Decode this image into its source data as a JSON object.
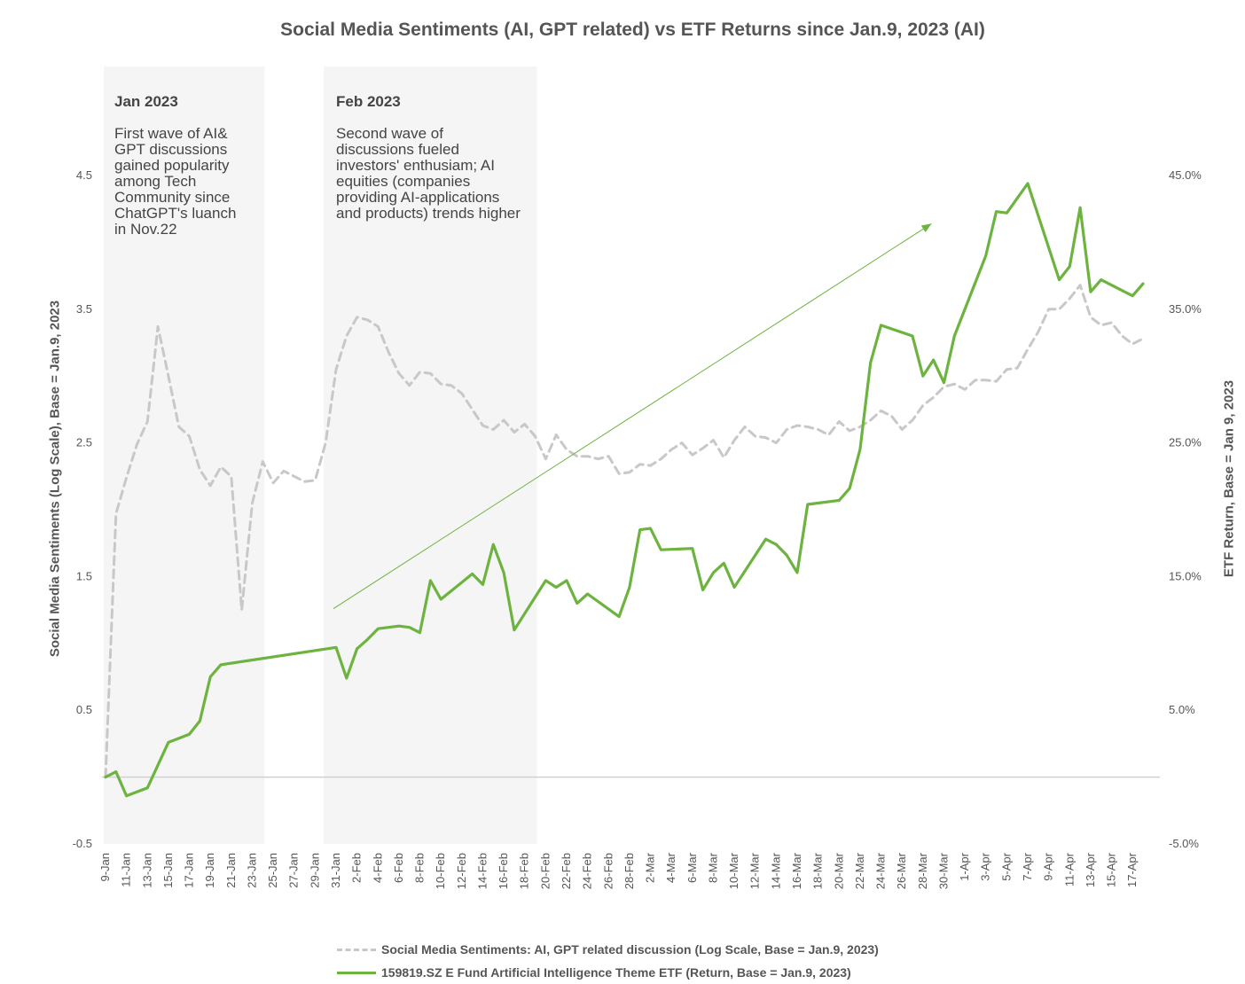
{
  "title": "Social Media Sentiments (AI, GPT related) vs ETF Returns since Jan.9, 2023 (AI)",
  "left_axis_label": "Social Media Sentiments (Log Scale), Base = Jan.9, 2023",
  "right_axis_label": "ETF Return, Base = Jan 9, 2023",
  "annotations": [
    {
      "title": "Jan 2023",
      "text": "First wave of AI&\nGPT discussions\ngained popularity\namong Tech\nCommunity since\nChatGPT's luanch\nin Nov.22"
    },
    {
      "title": "Feb 2023",
      "text": "Second wave of\ndiscussions fueled\ninvestors' enthusiam; AI\nequities (companies\nproviding AI-applications\nand products) trends higher"
    }
  ],
  "colors": {
    "sentiment": "#c8c8c8",
    "etf": "#6db33f",
    "shade": "#f5f5f5",
    "zero_line": "#d0d0d0",
    "trend_arrow": "#6db33f"
  },
  "legend": [
    {
      "label": "Social Media Sentiments: AI, GPT related discussion (Log Scale, Base = Jan.9, 2023)",
      "style": "dashed",
      "color": "#c8c8c8"
    },
    {
      "label": "159819.SZ E Fund Artificial Intelligence Theme ETF (Return, Base = Jan.9, 2023)",
      "style": "solid",
      "color": "#6db33f"
    }
  ],
  "chart_data": {
    "type": "line",
    "x_start": "9-Jan",
    "x_end": "18-Apr",
    "x_ticks": [
      "9-Jan",
      "11-Jan",
      "13-Jan",
      "15-Jan",
      "17-Jan",
      "19-Jan",
      "21-Jan",
      "23-Jan",
      "25-Jan",
      "27-Jan",
      "29-Jan",
      "31-Jan",
      "2-Feb",
      "4-Feb",
      "6-Feb",
      "8-Feb",
      "10-Feb",
      "12-Feb",
      "14-Feb",
      "16-Feb",
      "18-Feb",
      "20-Feb",
      "22-Feb",
      "24-Feb",
      "26-Feb",
      "28-Feb",
      "2-Mar",
      "4-Mar",
      "6-Mar",
      "8-Mar",
      "10-Mar",
      "12-Mar",
      "14-Mar",
      "16-Mar",
      "18-Mar",
      "20-Mar",
      "22-Mar",
      "24-Mar",
      "26-Mar",
      "28-Mar",
      "30-Mar",
      "1-Apr",
      "3-Apr",
      "5-Apr",
      "7-Apr",
      "9-Apr",
      "11-Apr",
      "13-Apr",
      "15-Apr",
      "17-Apr"
    ],
    "left_axis": {
      "min": -0.5,
      "max": 4.5,
      "ticks": [
        -0.5,
        0.5,
        1.5,
        2.5,
        3.5,
        4.5
      ],
      "tick_labels": [
        "-0.5",
        "0.5",
        "1.5",
        "2.5",
        "3.5",
        "4.5"
      ]
    },
    "right_axis": {
      "min": -5.0,
      "max": 45.0,
      "ticks": [
        -5,
        5,
        15,
        25,
        35,
        45
      ],
      "tick_labels": [
        "-5.0%",
        "5.0%",
        "15.0%",
        "25.0%",
        "35.0%",
        "45.0%"
      ]
    },
    "shaded_ranges": [
      [
        "9-Jan",
        "24-Jan"
      ],
      [
        "30-Jan",
        "19-Feb"
      ]
    ],
    "trend_arrow": {
      "from": [
        "31-Jan",
        1.26
      ],
      "to": [
        "30-Mar",
        4.14
      ]
    },
    "series": [
      {
        "name": "Social Media Sentiments: AI, GPT related discussion (Log Scale, Base = Jan.9, 2023)",
        "axis": "left",
        "style": "dashed",
        "points": [
          [
            "9-Jan",
            0.0
          ],
          [
            "10-Jan",
            1.97
          ],
          [
            "11-Jan",
            2.24
          ],
          [
            "12-Jan",
            2.49
          ],
          [
            "13-Jan",
            2.66
          ],
          [
            "14-Jan",
            3.37
          ],
          [
            "15-Jan",
            3.0
          ],
          [
            "16-Jan",
            2.62
          ],
          [
            "17-Jan",
            2.55
          ],
          [
            "18-Jan",
            2.3
          ],
          [
            "19-Jan",
            2.18
          ],
          [
            "20-Jan",
            2.32
          ],
          [
            "21-Jan",
            2.25
          ],
          [
            "22-Jan",
            1.25
          ],
          [
            "23-Jan",
            2.05
          ],
          [
            "24-Jan",
            2.36
          ],
          [
            "25-Jan",
            2.2
          ],
          [
            "26-Jan",
            2.29
          ],
          [
            "27-Jan",
            2.25
          ],
          [
            "28-Jan",
            2.21
          ],
          [
            "29-Jan",
            2.22
          ],
          [
            "30-Jan",
            2.5
          ],
          [
            "31-Jan",
            3.05
          ],
          [
            "1-Feb",
            3.3
          ],
          [
            "2-Feb",
            3.44
          ],
          [
            "3-Feb",
            3.42
          ],
          [
            "4-Feb",
            3.37
          ],
          [
            "5-Feb",
            3.18
          ],
          [
            "6-Feb",
            3.02
          ],
          [
            "7-Feb",
            2.93
          ],
          [
            "8-Feb",
            3.03
          ],
          [
            "9-Feb",
            3.02
          ],
          [
            "10-Feb",
            2.94
          ],
          [
            "11-Feb",
            2.93
          ],
          [
            "12-Feb",
            2.87
          ],
          [
            "13-Feb",
            2.75
          ],
          [
            "14-Feb",
            2.63
          ],
          [
            "15-Feb",
            2.6
          ],
          [
            "16-Feb",
            2.67
          ],
          [
            "17-Feb",
            2.58
          ],
          [
            "18-Feb",
            2.64
          ],
          [
            "19-Feb",
            2.55
          ],
          [
            "20-Feb",
            2.38
          ],
          [
            "21-Feb",
            2.56
          ],
          [
            "22-Feb",
            2.45
          ],
          [
            "23-Feb",
            2.4
          ],
          [
            "24-Feb",
            2.4
          ],
          [
            "25-Feb",
            2.38
          ],
          [
            "26-Feb",
            2.4
          ],
          [
            "27-Feb",
            2.27
          ],
          [
            "28-Feb",
            2.28
          ],
          [
            "1-Mar",
            2.34
          ],
          [
            "2-Mar",
            2.33
          ],
          [
            "3-Mar",
            2.38
          ],
          [
            "4-Mar",
            2.45
          ],
          [
            "5-Mar",
            2.5
          ],
          [
            "6-Mar",
            2.41
          ],
          [
            "7-Mar",
            2.46
          ],
          [
            "8-Mar",
            2.52
          ],
          [
            "9-Mar",
            2.39
          ],
          [
            "10-Mar",
            2.52
          ],
          [
            "11-Mar",
            2.62
          ],
          [
            "12-Mar",
            2.55
          ],
          [
            "13-Mar",
            2.54
          ],
          [
            "14-Mar",
            2.5
          ],
          [
            "15-Mar",
            2.6
          ],
          [
            "16-Mar",
            2.63
          ],
          [
            "17-Mar",
            2.62
          ],
          [
            "18-Mar",
            2.6
          ],
          [
            "19-Mar",
            2.56
          ],
          [
            "20-Mar",
            2.66
          ],
          [
            "21-Mar",
            2.59
          ],
          [
            "22-Mar",
            2.62
          ],
          [
            "23-Mar",
            2.67
          ],
          [
            "24-Mar",
            2.74
          ],
          [
            "25-Mar",
            2.7
          ],
          [
            "26-Mar",
            2.6
          ],
          [
            "27-Mar",
            2.67
          ],
          [
            "28-Mar",
            2.78
          ],
          [
            "29-Mar",
            2.84
          ],
          [
            "30-Mar",
            2.92
          ],
          [
            "31-Mar",
            2.94
          ],
          [
            "1-Apr",
            2.9
          ],
          [
            "2-Apr",
            2.97
          ],
          [
            "3-Apr",
            2.97
          ],
          [
            "4-Apr",
            2.96
          ],
          [
            "5-Apr",
            3.05
          ],
          [
            "6-Apr",
            3.06
          ],
          [
            "7-Apr",
            3.2
          ],
          [
            "8-Apr",
            3.33
          ],
          [
            "9-Apr",
            3.5
          ],
          [
            "10-Apr",
            3.5
          ],
          [
            "11-Apr",
            3.58
          ],
          [
            "12-Apr",
            3.68
          ],
          [
            "13-Apr",
            3.44
          ],
          [
            "14-Apr",
            3.38
          ],
          [
            "15-Apr",
            3.4
          ],
          [
            "16-Apr",
            3.3
          ],
          [
            "17-Apr",
            3.24
          ],
          [
            "18-Apr",
            3.28
          ]
        ]
      },
      {
        "name": "159819.SZ E Fund Artificial Intelligence Theme ETF (Return, Base = Jan.9, 2023)",
        "axis": "right",
        "style": "solid",
        "points": [
          [
            "9-Jan",
            0.0
          ],
          [
            "10-Jan",
            0.4
          ],
          [
            "11-Jan",
            -1.4
          ],
          [
            "12-Jan",
            -1.1
          ],
          [
            "13-Jan",
            -0.8
          ],
          [
            "15-Jan",
            2.6
          ],
          [
            "16-Jan",
            2.9
          ],
          [
            "17-Jan",
            3.2
          ],
          [
            "18-Jan",
            4.2
          ],
          [
            "19-Jan",
            7.5
          ],
          [
            "20-Jan",
            8.4
          ],
          [
            "31-Jan",
            9.7
          ],
          [
            "1-Feb",
            7.4
          ],
          [
            "2-Feb",
            9.6
          ],
          [
            "3-Feb",
            10.3
          ],
          [
            "4-Feb",
            11.1
          ],
          [
            "6-Feb",
            11.3
          ],
          [
            "7-Feb",
            11.2
          ],
          [
            "8-Feb",
            10.8
          ],
          [
            "9-Feb",
            14.7
          ],
          [
            "10-Feb",
            13.3
          ],
          [
            "13-Feb",
            15.2
          ],
          [
            "14-Feb",
            14.4
          ],
          [
            "15-Feb",
            17.4
          ],
          [
            "16-Feb",
            15.3
          ],
          [
            "17-Feb",
            11.0
          ],
          [
            "20-Feb",
            14.7
          ],
          [
            "21-Feb",
            14.2
          ],
          [
            "22-Feb",
            14.7
          ],
          [
            "23-Feb",
            13.0
          ],
          [
            "24-Feb",
            13.7
          ],
          [
            "27-Feb",
            12.0
          ],
          [
            "28-Feb",
            14.2
          ],
          [
            "1-Mar",
            18.5
          ],
          [
            "2-Mar",
            18.6
          ],
          [
            "3-Mar",
            17.0
          ],
          [
            "6-Mar",
            17.1
          ],
          [
            "7-Mar",
            14.0
          ],
          [
            "8-Mar",
            15.3
          ],
          [
            "9-Mar",
            16.0
          ],
          [
            "10-Mar",
            14.2
          ],
          [
            "13-Mar",
            17.8
          ],
          [
            "14-Mar",
            17.4
          ],
          [
            "15-Mar",
            16.6
          ],
          [
            "16-Mar",
            15.3
          ],
          [
            "17-Mar",
            20.4
          ],
          [
            "20-Mar",
            20.7
          ],
          [
            "21-Mar",
            21.6
          ],
          [
            "22-Mar",
            24.5
          ],
          [
            "23-Mar",
            31.0
          ],
          [
            "24-Mar",
            33.8
          ],
          [
            "27-Mar",
            33.0
          ],
          [
            "28-Mar",
            30.0
          ],
          [
            "29-Mar",
            31.2
          ],
          [
            "30-Mar",
            29.5
          ],
          [
            "31-Mar",
            33.0
          ],
          [
            "3-Apr",
            39.0
          ],
          [
            "4-Apr",
            42.3
          ],
          [
            "5-Apr",
            42.2
          ],
          [
            "7-Apr",
            44.4
          ],
          [
            "10-Apr",
            37.2
          ],
          [
            "11-Apr",
            38.2
          ],
          [
            "12-Apr",
            42.6
          ],
          [
            "13-Apr",
            36.3
          ],
          [
            "14-Apr",
            37.2
          ],
          [
            "17-Apr",
            36.0
          ],
          [
            "18-Apr",
            36.9
          ]
        ]
      }
    ],
    "grid": false,
    "legend_position": "bottom"
  }
}
